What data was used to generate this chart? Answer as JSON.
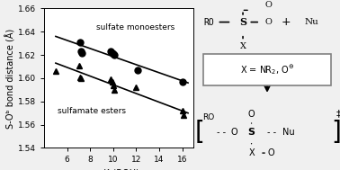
{
  "sulfate_x": [
    7.1,
    7.2,
    7.3,
    9.8,
    9.9,
    10.0,
    10.1,
    12.1,
    16.0
  ],
  "sulfate_y": [
    1.631,
    1.623,
    1.622,
    1.623,
    1.622,
    1.621,
    1.62,
    1.607,
    1.597
  ],
  "sulfamate_x": [
    5.0,
    7.0,
    7.1,
    7.2,
    9.8,
    9.9,
    10.0,
    10.05,
    12.0,
    16.0,
    16.1
  ],
  "sulfamate_y": [
    1.606,
    1.611,
    1.601,
    1.6,
    1.599,
    1.597,
    1.594,
    1.59,
    1.592,
    1.572,
    1.568
  ],
  "sulfate_fit_x": [
    5.0,
    16.5
  ],
  "sulfate_fit_y": [
    1.636,
    1.596
  ],
  "sulfamate_fit_x": [
    5.0,
    16.5
  ],
  "sulfamate_fit_y": [
    1.613,
    1.57
  ],
  "xlim": [
    4,
    17
  ],
  "ylim": [
    1.54,
    1.66
  ],
  "xticks": [
    6,
    8,
    10,
    12,
    14,
    16
  ],
  "yticks": [
    1.54,
    1.56,
    1.58,
    1.6,
    1.62,
    1.64,
    1.66
  ],
  "xlabel": "pKₐ(ROH)",
  "ylabel": "S-Oᵇ bond distance (Å)",
  "label_sulfate": "sulfate monoesters",
  "label_sulfamate": "sulfamate esters",
  "bg_color": "#f0f0f0",
  "plot_bg": "#ffffff"
}
